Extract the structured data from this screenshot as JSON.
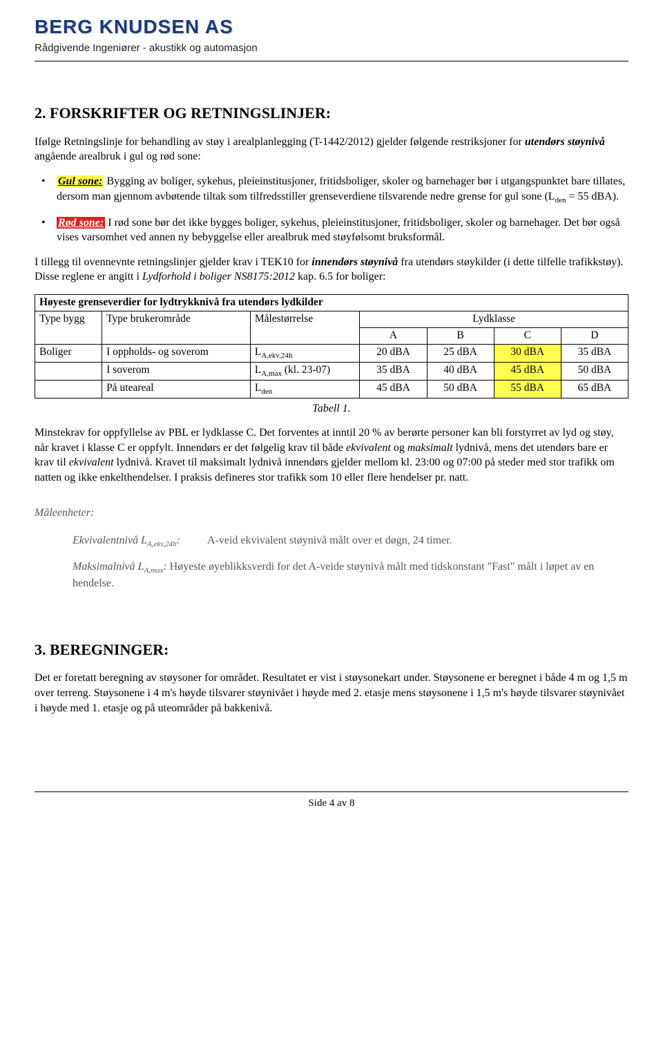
{
  "header": {
    "company": "BERG KNUDSEN AS",
    "subtitle": "Rådgivende Ingeniører - akustikk og automasjon"
  },
  "section2": {
    "heading": "2. FORSKRIFTER OG RETNINGSLINJER:",
    "intro_pre": "Ifølge Retningslinje for behandling av støy i arealplanlegging (T-1442/2012) gjelder følgende restriksjoner for ",
    "intro_em": "utendørs støynivå",
    "intro_post": " angående arealbruk i gul og rød sone:",
    "gul_label": "Gul sone:",
    "gul_text1": "   Bygging av boliger, sykehus, pleieinstitusjoner, fritidsboliger, skoler og barnehager bør i utgangspunktet bare tillates, dersom man gjennom avbøtende tiltak som tilfredsstiller grenseverdiene tilsvarende nedre grense for gul sone (L",
    "gul_sub": "den",
    "gul_text2": " = 55 dBA).",
    "rod_label": "Rød sone:",
    "rod_text": "   I rød sone bør det ikke bygges boliger, sykehus, pleieinstitusjoner, fritidsboliger, skoler og barnehager. Det bør også vises varsomhet ved annen ny bebyggelse eller arealbruk med støyfølsomt bruksformål.",
    "para2_pre": "I tillegg til ovennevnte retningslinjer gjelder krav i TEK10 for ",
    "para2_em": "innendørs støynivå",
    "para2_mid": " fra utendørs støykilder (i dette tilfelle trafikkstøy). Disse reglene er angitt i ",
    "para2_em2": "Lydforhold i boliger NS8175:2012",
    "para2_post": "  kap. 6.5 for boliger:"
  },
  "table": {
    "title": "Høyeste grenseverdier for lydtrykknivå fra utendørs lydkilder",
    "h_type": "Type bygg",
    "h_omr": "Type brukerområde",
    "h_male": "Målestørrelse",
    "h_lyd": "Lydklasse",
    "classes": [
      "A",
      "B",
      "C",
      "D"
    ],
    "rows": [
      {
        "bygg": "Boliger",
        "omr": "I oppholds- og soverom",
        "male": "L",
        "male_sub": "A,ekv,24h",
        "vals": [
          "20 dBA",
          "25 dBA",
          "30 dBA",
          "35 dBA"
        ]
      },
      {
        "bygg": "",
        "omr": "I soverom",
        "male": "L",
        "male_sub": "A,max",
        "male_tail": " (kl. 23-07)",
        "vals": [
          "35 dBA",
          "40 dBA",
          "45 dBA",
          "50 dBA"
        ]
      },
      {
        "bygg": "",
        "omr": "På uteareal",
        "male": "L",
        "male_sub": "den",
        "vals": [
          "45 dBA",
          "50 dBA",
          "55 dBA",
          "65 dBA"
        ]
      }
    ],
    "caption": "Tabell 1."
  },
  "minstepara_a": "Minstekrav for oppfyllelse av PBL er lydklasse C. Det forventes at inntil 20 % av berørte personer kan bli forstyrret av lyd og støy, når kravet i klasse C er oppfylt. Innendørs er det følgelig krav til både ",
  "minstepara_em1": "ekvivalent",
  "minstepara_b": " og ",
  "minstepara_em2": "maksimalt",
  "minstepara_c": " lydnivå, mens det utendørs bare er krav til ",
  "minstepara_em3": "ekvivalent",
  "minstepara_d": " lydnivå. Kravet til maksimalt lydnivå innendørs gjelder mellom kl. 23:00 og 07:00 på steder med stor trafikk om natten og ikke enkelthendelser. I praksis defineres stor trafikk som 10 eller flere hendelser pr. natt.",
  "maale": {
    "title": "Måleenheter:",
    "ekv_term_pre": "Ekvivalentnivå L",
    "ekv_sub": "A,ekv,24h",
    "ekv_term_post": ":",
    "ekv_def": "A-veid ekvivalent støynivå målt over et døgn, 24 timer.",
    "max_term_pre": "Maksimalnivå L",
    "max_sub": "A,max",
    "max_term_post": ":",
    "max_def": "   Høyeste øyeblikksverdi for det A-veide støynivå målt med tidskonstant \"Fast\" målt i løpet av en hendelse."
  },
  "section3": {
    "heading": "3. BEREGNINGER:",
    "para": "Det er foretatt beregning av støysoner for området. Resultatet er vist i støysonekart under. Støysonene er beregnet i både 4 m og 1,5 m over terreng. Støysonene i 4 m's høyde tilsvarer støynivået i høyde med 2. etasje mens støysonene i 1,5 m's høyde tilsvarer støynivået i høyde med 1. etasje og på uteområder på bakkenivå."
  },
  "footer": "Side 4 av 8"
}
